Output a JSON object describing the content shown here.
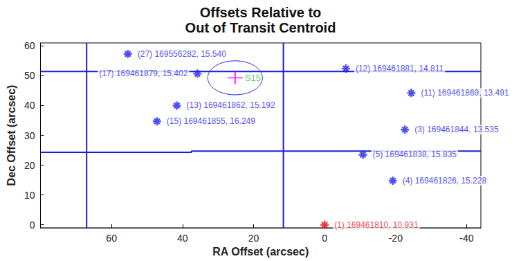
{
  "chart_data": {
    "type": "scatter",
    "title": "Offsets Relative to\nOut of Transit Centroid",
    "x_label": "RA Offset (arcsec)",
    "y_label": "Dec Offset (arcsec)",
    "xlim": [
      80,
      -44
    ],
    "xticks": [
      60,
      40,
      20,
      0,
      -20,
      -40
    ],
    "ylim": [
      -1,
      61
    ],
    "yticks": [
      0,
      10,
      20,
      30,
      40,
      50,
      60
    ],
    "grid": false,
    "points": [
      {
        "x": 55.4,
        "y": 57.3,
        "label": "(27) 169556282, 15.540",
        "color": "#2020f0"
      },
      {
        "x": 35.8,
        "y": 50.7,
        "label": "(17) 169461879, 15.402",
        "color": "#2020f0"
      },
      {
        "x": -6.0,
        "y": 52.4,
        "label": "(12) 169461881, 14.811",
        "color": "#2020f0"
      },
      {
        "x": -24.4,
        "y": 44.2,
        "label": "(11) 169461869, 13.491",
        "color": "#2020f0"
      },
      {
        "x": 41.6,
        "y": 40.0,
        "label": "(13) 169461862, 15.192",
        "color": "#2020f0"
      },
      {
        "x": 47.2,
        "y": 34.7,
        "label": "(15) 169461855, 16.249",
        "color": "#2020f0"
      },
      {
        "x": -22.6,
        "y": 31.9,
        "label": "(3) 169461844, 13.535",
        "color": "#2020f0"
      },
      {
        "x": -10.8,
        "y": 23.5,
        "label": "(5) 169461838, 15.835",
        "color": "#2020f0"
      },
      {
        "x": -19.2,
        "y": 14.8,
        "label": "(4) 169461826, 15.228",
        "color": "#2020f0"
      },
      {
        "x": 0,
        "y": 0,
        "label": "(1) 169461810, 10.931",
        "color": "#e8141e"
      }
    ],
    "centroid": {
      "x": 25.2,
      "y": 49.3,
      "label": "S15",
      "color": "#ff00ff",
      "label_color": "#2ebf2e"
    },
    "error_ellipse": {
      "x": 25.2,
      "y": 49.3,
      "rx": 7.7,
      "ry": 5.7,
      "color": "#2020f0"
    },
    "boundary_lines": [
      {
        "color": "#1c1cd8",
        "points": [
          [
            80,
            51.4
          ],
          [
            -44,
            51.4
          ]
        ]
      },
      {
        "color": "#1c1cd8",
        "points": [
          [
            80,
            24.3
          ],
          [
            37.5,
            24.3
          ],
          [
            37.5,
            24.7
          ],
          [
            -44,
            24.7
          ]
        ]
      },
      {
        "color": "#1c1cd8",
        "points": [
          [
            67,
            -1
          ],
          [
            67,
            61
          ]
        ]
      },
      {
        "color": "#1c1cd8",
        "points": [
          [
            11.6,
            -1
          ],
          [
            11.6,
            61
          ]
        ]
      }
    ]
  }
}
